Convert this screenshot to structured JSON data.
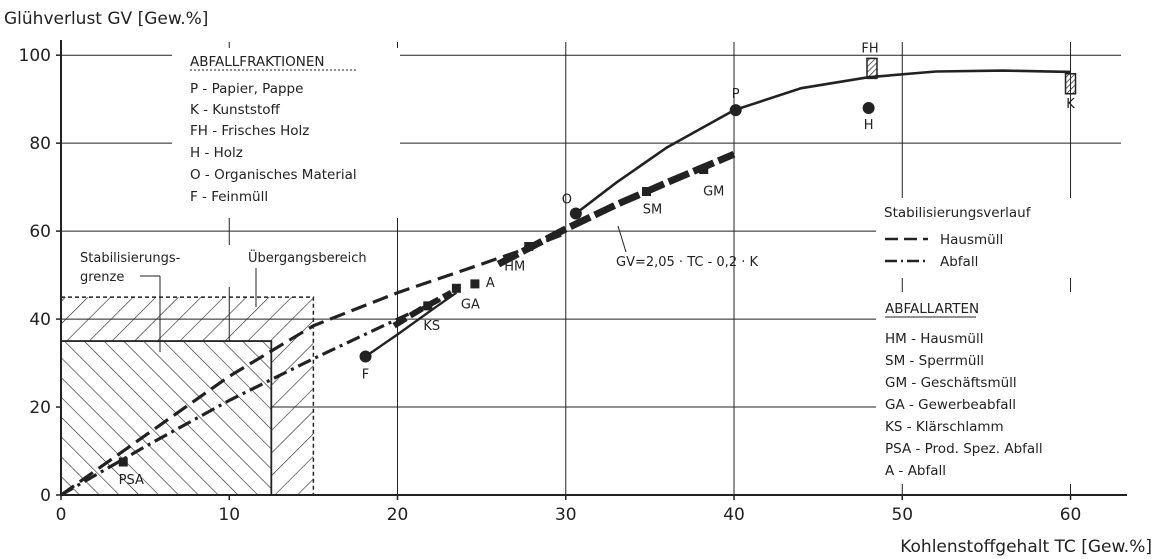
{
  "chart_data": {
    "type": "scatter",
    "ylabel": "Glühverlust GV [Gew.%]",
    "xlabel": "Kohlenstoffgehalt TC [Gew.%]",
    "xlim": [
      0,
      63
    ],
    "ylim": [
      0,
      103
    ],
    "x_ticks": [
      "0",
      "10",
      "20",
      "30",
      "40",
      "50",
      "60"
    ],
    "y_ticks": [
      "0",
      "20",
      "40",
      "60",
      "80",
      "100"
    ],
    "grid": true,
    "fraktionen_legend": {
      "title": "ABFALLFRAKTIONEN",
      "items": [
        "P   - Papier, Pappe",
        "K   - Kunststoff",
        "FH - Frisches Holz",
        "H   - Holz",
        "O   - Organisches Material",
        "F   - Feinmüll"
      ]
    },
    "abfallarten_legend": {
      "title": "ABFALLARTEN",
      "items": [
        "HM - Hausmüll",
        "SM - Sperrmüll",
        "GM - Geschäftsmüll",
        "GA - Gewerbeabfall",
        "KS - Klärschlamm",
        "PSA - Prod. Spez. Abfall",
        "A   - Abfall"
      ]
    },
    "verlauf_legend": {
      "title": "Stabilisierungsverlauf",
      "items": [
        "Hausmüll",
        "Abfall"
      ]
    },
    "annotations": {
      "stab_grenze_1": "Stabilisierungs-",
      "stab_grenze_2": "grenze",
      "uebergang": "Übergangsbereich",
      "formula": "GV=2,05 · TC - 0,2 · K"
    },
    "stab_grenze_region": {
      "x": [
        0,
        12.5
      ],
      "y": [
        0,
        35
      ]
    },
    "uebergang_region": {
      "x": [
        0,
        15
      ],
      "y": [
        0,
        45
      ]
    },
    "fraktionen_points": [
      {
        "label": "P",
        "x": 40.1,
        "y": 87.5,
        "marker": "circle"
      },
      {
        "label": "H",
        "x": 48.0,
        "y": 88.0,
        "marker": "circle"
      },
      {
        "label": "O",
        "x": 30.6,
        "y": 64.0,
        "marker": "circle"
      },
      {
        "label": "F",
        "x": 18.1,
        "y": 31.5,
        "marker": "circle"
      },
      {
        "label": "FH",
        "x": 48.2,
        "y": 97.0,
        "marker": "hatched"
      },
      {
        "label": "K",
        "x": 60.0,
        "y": 93.5,
        "marker": "hatched"
      }
    ],
    "abfallarten_points": [
      {
        "label": "HM",
        "x": 27.8,
        "y": 56.5
      },
      {
        "label": "SM",
        "x": 34.8,
        "y": 69.0
      },
      {
        "label": "GM",
        "x": 38.2,
        "y": 74.0
      },
      {
        "label": "GA",
        "x": 23.5,
        "y": 47.0
      },
      {
        "label": "KS",
        "x": 21.8,
        "y": 43.0
      },
      {
        "label": "PSA",
        "x": 3.7,
        "y": 7.5
      },
      {
        "label": "A",
        "x": 24.6,
        "y": 48.0
      }
    ],
    "series": [
      {
        "name": "Hausmüll",
        "style": "dashed",
        "x": [
          0,
          5,
          10,
          15,
          20,
          25,
          28,
          30
        ],
        "y": [
          0,
          13.5,
          27,
          38.5,
          46,
          52.5,
          56.5,
          59.5
        ]
      },
      {
        "name": "Abfall",
        "style": "dashdot",
        "x": [
          0,
          5,
          10,
          15,
          20,
          23.2
        ],
        "y": [
          0,
          11,
          21.5,
          31,
          40,
          45.5
        ]
      }
    ],
    "solid_curve": {
      "x": [
        30.6,
        33,
        36,
        40,
        44,
        48,
        52,
        56,
        60
      ],
      "y": [
        64,
        71,
        79,
        87.5,
        92.5,
        95,
        96.3,
        96.5,
        96.2
      ]
    },
    "thick_band": {
      "x": [
        26,
        28,
        30,
        33,
        36,
        40
      ],
      "y": [
        52.5,
        56.5,
        60.5,
        66,
        71,
        77.5
      ]
    },
    "fine_line": {
      "x": [
        18.1,
        20,
        22,
        23.5
      ],
      "y": [
        31.5,
        36.5,
        42,
        46
      ]
    },
    "ks_band": {
      "x": [
        19.8,
        21.5,
        23.2
      ],
      "y": [
        38.5,
        42.5,
        46
      ]
    },
    "colors": {
      "ink": "#222222",
      "background": "#ffffff"
    }
  }
}
